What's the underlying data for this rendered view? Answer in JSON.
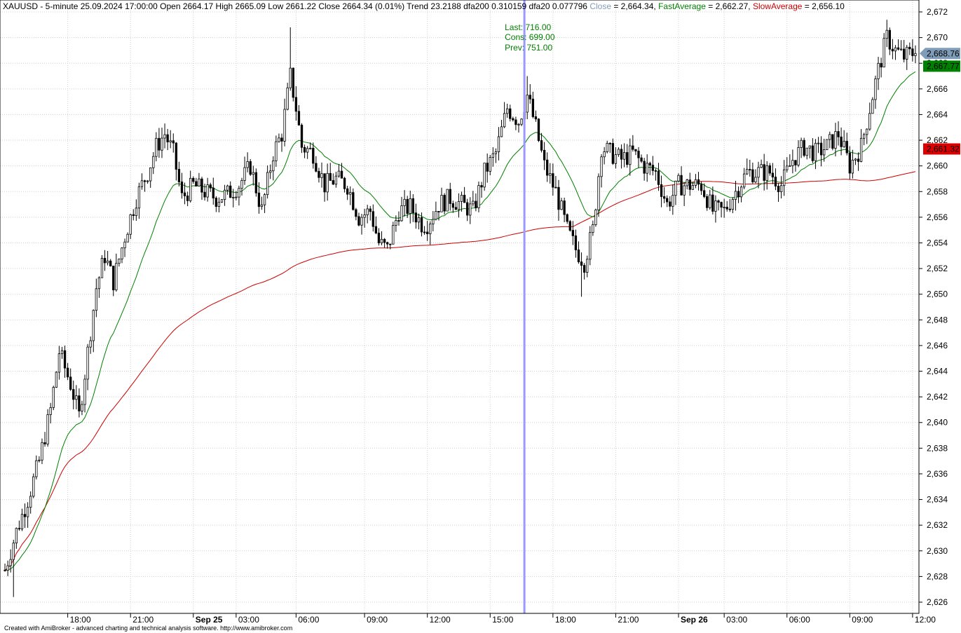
{
  "header": {
    "symbol_line": "XAUUSD - 5-minute 25.09.2024 17:00:00 Open 2664.17 High 2665.09 Low 2661.22 Close 2664.34 (0.01%) Trend 23.2188 dfa200 0.310159 dfa20 0.077796",
    "close_label": "Close",
    "close_value": " = 2,664.34, ",
    "fast_label": "FastAverage",
    "fast_value": " = 2,662.27, ",
    "slow_label": "SlowAverage",
    "slow_value": " = 2,656.10"
  },
  "tooltip": {
    "last": "Last: 716.00",
    "cons": "Cons: 699.00",
    "prev": "Prev: 751.00"
  },
  "price_tags": {
    "close": "2,668.76",
    "fast": "2,667.77",
    "slow": "2,661.32"
  },
  "footer": "Created with AmiBroker - advanced charting and technical analysis software. http://www.amibroker.com",
  "colors": {
    "candle": "#000000",
    "fast_average": "#008000",
    "slow_average": "#cc0000",
    "close_tag": "#7f9db9",
    "fast_tag": "#008000",
    "slow_tag": "#dd0000",
    "cursor": "#9999ff",
    "grid": "#d0d0d0"
  },
  "chart_data": {
    "type": "candlestick",
    "symbol": "XAUUSD",
    "interval": "5-minute",
    "ylim": [
      2625.5,
      2673.5
    ],
    "y_ticks": [
      "2,626",
      "2,628",
      "2,630",
      "2,632",
      "2,634",
      "2,636",
      "2,638",
      "2,640",
      "2,642",
      "2,644",
      "2,646",
      "2,648",
      "2,650",
      "2,652",
      "2,654",
      "2,656",
      "2,658",
      "2,660",
      "2,662",
      "2,664",
      "2,666",
      "2,668",
      "2,670",
      "2,672"
    ],
    "y_tick_values": [
      2626,
      2628,
      2630,
      2632,
      2634,
      2636,
      2638,
      2640,
      2642,
      2644,
      2646,
      2648,
      2650,
      2652,
      2654,
      2656,
      2658,
      2660,
      2662,
      2664,
      2666,
      2668,
      2670,
      2672
    ],
    "x_ticks": [
      {
        "label": "18:00",
        "bold": false
      },
      {
        "label": "21:00",
        "bold": false
      },
      {
        "label": "Sep 25",
        "bold": true
      },
      {
        "label": "03:00",
        "bold": false
      },
      {
        "label": "06:00",
        "bold": false
      },
      {
        "label": "09:00",
        "bold": false
      },
      {
        "label": "12:00",
        "bold": false
      },
      {
        "label": "15:00",
        "bold": false
      },
      {
        "label": "18:00",
        "bold": false
      },
      {
        "label": "21:00",
        "bold": false
      },
      {
        "label": "Sep 26",
        "bold": true
      },
      {
        "label": "03:00",
        "bold": false
      },
      {
        "label": "06:00",
        "bold": false
      },
      {
        "label": "09:00",
        "bold": false
      },
      {
        "label": "12:00",
        "bold": false
      }
    ],
    "x_tick_bar_index": [
      22,
      44,
      66,
      81,
      102,
      126,
      148,
      170,
      192,
      214,
      236,
      252,
      274,
      296,
      318
    ],
    "cursor_bar_index": 182,
    "price_anchors": [
      [
        0,
        2628.5
      ],
      [
        4,
        2631.5
      ],
      [
        8,
        2634.0
      ],
      [
        12,
        2637.0
      ],
      [
        16,
        2641.0
      ],
      [
        19,
        2645.5
      ],
      [
        23,
        2643.0
      ],
      [
        26,
        2640.5
      ],
      [
        29,
        2645.5
      ],
      [
        32,
        2650.5
      ],
      [
        35,
        2653.0
      ],
      [
        38,
        2651.0
      ],
      [
        42,
        2654.5
      ],
      [
        46,
        2657.5
      ],
      [
        50,
        2659.5
      ],
      [
        53,
        2661.5
      ],
      [
        56,
        2662.5
      ],
      [
        59,
        2661.0
      ],
      [
        62,
        2657.5
      ],
      [
        66,
        2658.5
      ],
      [
        70,
        2658.0
      ],
      [
        74,
        2657.5
      ],
      [
        78,
        2657.8
      ],
      [
        82,
        2658.5
      ],
      [
        86,
        2660.0
      ],
      [
        90,
        2656.5
      ],
      [
        94,
        2661.0
      ],
      [
        97,
        2662.5
      ],
      [
        100,
        2667.0
      ],
      [
        102,
        2664.5
      ],
      [
        104,
        2661.5
      ],
      [
        108,
        2661.0
      ],
      [
        112,
        2658.5
      ],
      [
        116,
        2659.0
      ],
      [
        120,
        2658.5
      ],
      [
        124,
        2656.0
      ],
      [
        128,
        2656.5
      ],
      [
        131,
        2654.0
      ],
      [
        134,
        2653.5
      ],
      [
        138,
        2656.5
      ],
      [
        142,
        2656.8
      ],
      [
        146,
        2655.5
      ],
      [
        148,
        2655.5
      ],
      [
        152,
        2657.0
      ],
      [
        156,
        2657.5
      ],
      [
        160,
        2657.0
      ],
      [
        164,
        2656.5
      ],
      [
        168,
        2659.5
      ],
      [
        172,
        2661.0
      ],
      [
        176,
        2664.5
      ],
      [
        180,
        2663.5
      ],
      [
        183,
        2665.5
      ],
      [
        186,
        2663.0
      ],
      [
        189,
        2660.0
      ],
      [
        193,
        2658.0
      ],
      [
        197,
        2655.0
      ],
      [
        200,
        2653.5
      ],
      [
        203,
        2652.5
      ],
      [
        206,
        2655.0
      ],
      [
        209,
        2661.5
      ],
      [
        212,
        2661.0
      ],
      [
        216,
        2660.5
      ],
      [
        220,
        2661.0
      ],
      [
        224,
        2660.0
      ],
      [
        228,
        2659.5
      ],
      [
        232,
        2657.0
      ],
      [
        236,
        2658.5
      ],
      [
        240,
        2658.5
      ],
      [
        244,
        2658.5
      ],
      [
        248,
        2656.5
      ],
      [
        252,
        2656.5
      ],
      [
        256,
        2658.0
      ],
      [
        260,
        2659.5
      ],
      [
        264,
        2659.5
      ],
      [
        268,
        2659.5
      ],
      [
        272,
        2658.5
      ],
      [
        276,
        2660.5
      ],
      [
        280,
        2661.5
      ],
      [
        284,
        2661.0
      ],
      [
        288,
        2661.5
      ],
      [
        292,
        2662.5
      ],
      [
        296,
        2660.0
      ],
      [
        300,
        2661.5
      ],
      [
        303,
        2664.5
      ],
      [
        306,
        2667.5
      ],
      [
        309,
        2670.0
      ],
      [
        312,
        2669.0
      ],
      [
        315,
        2668.5
      ],
      [
        318,
        2668.8
      ]
    ],
    "series": [
      {
        "name": "Close",
        "style": "candlestick"
      },
      {
        "name": "FastAverage",
        "period": 20,
        "last": 2662.27
      },
      {
        "name": "SlowAverage",
        "period": 200,
        "last": 2656.1
      }
    ],
    "last_close": 2668.76,
    "fast_tag_value": 2667.77,
    "slow_tag_value": 2661.32
  }
}
